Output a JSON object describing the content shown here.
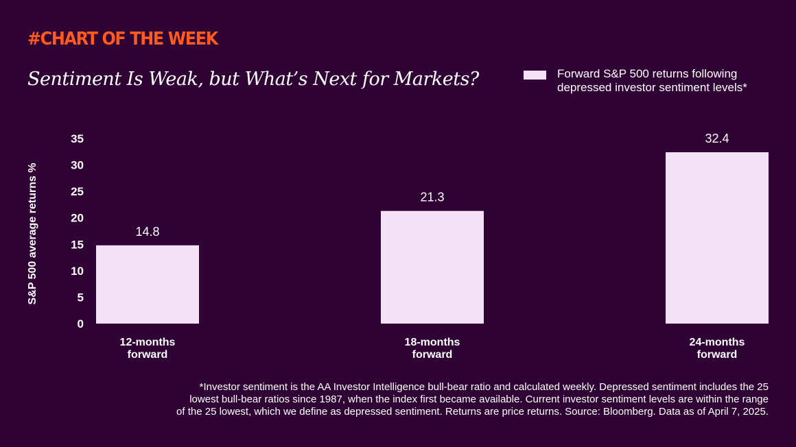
{
  "header": {
    "kicker": "#CHART OF THE WEEK",
    "title": "Sentiment Is Weak, but What’s Next for Markets?"
  },
  "legend": {
    "lines": [
      "Forward S&P 500 returns following",
      "depressed investor sentiment levels*"
    ],
    "color": "#f4e1f5"
  },
  "chart_data": {
    "type": "bar",
    "categories": [
      [
        "12-months",
        "forward"
      ],
      [
        "18-months",
        "forward"
      ],
      [
        "24-months",
        "forward"
      ]
    ],
    "series": [
      {
        "name": "Forward S&P 500 returns following depressed investor sentiment levels*",
        "values": [
          14.8,
          21.3,
          32.4
        ]
      }
    ],
    "data_labels": [
      "14.8",
      "21.3",
      "32.4"
    ],
    "ylabel": "S&P 500 average returns %",
    "xlabel": "",
    "ylim": [
      0,
      35
    ],
    "yticks": [
      0,
      5,
      10,
      15,
      20,
      25,
      30,
      35
    ],
    "grid": false,
    "legend_position": "top-right",
    "bar_color": "#f4e1f5"
  },
  "footnote": {
    "lines": [
      "*Investor sentiment is the AA Investor Intelligence bull-bear ratio and calculated weekly. Depressed sentiment includes the 25",
      "lowest bull-bear ratios since 1987, when the index first became available. Current investor sentiment levels are within the range",
      "of the 25 lowest, which we define as depressed sentiment. Returns are price returns. Source: Bloomberg. Data as of April 7, 2025."
    ]
  },
  "colors": {
    "background": "#2f0435",
    "accent": "#ff5a1f",
    "text": "#ffffff"
  }
}
